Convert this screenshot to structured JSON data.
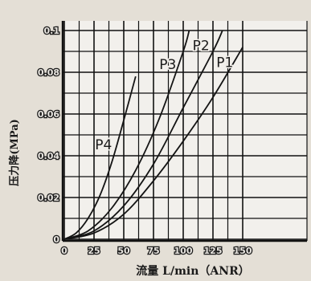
{
  "chart_data": {
    "type": "line",
    "xlabel": "流量 L/min（ANR）",
    "ylabel": "压力降(MPa)",
    "xlim": [
      0,
      160
    ],
    "ylim": [
      0,
      0.1
    ],
    "x_ticks": [
      0,
      25,
      50,
      75,
      100,
      125,
      150
    ],
    "y_ticks": [
      0,
      0.02,
      0.04,
      0.06,
      0.08,
      0.1
    ],
    "x_tick_labels": [
      "0",
      "25",
      "50",
      "75",
      "100",
      "125",
      "150"
    ],
    "y_tick_labels": [
      "0",
      "0.02",
      "0.04",
      "0.06",
      "0.08",
      "0.1"
    ],
    "grid": true,
    "series": [
      {
        "name": "P4",
        "x": [
          0,
          10,
          20,
          30,
          40,
          50,
          60
        ],
        "y": [
          0,
          0.003,
          0.01,
          0.021,
          0.037,
          0.057,
          0.078
        ]
      },
      {
        "name": "P3",
        "x": [
          0,
          20,
          40,
          60,
          80,
          100,
          105
        ],
        "y": [
          0,
          0.004,
          0.015,
          0.033,
          0.058,
          0.09,
          0.1
        ]
      },
      {
        "name": "P2",
        "x": [
          0,
          25,
          50,
          75,
          100,
          125,
          133
        ],
        "y": [
          0,
          0.004,
          0.016,
          0.036,
          0.063,
          0.09,
          0.1
        ]
      },
      {
        "name": "P1",
        "x": [
          0,
          25,
          50,
          75,
          100,
          125,
          150
        ],
        "y": [
          0,
          0.003,
          0.012,
          0.028,
          0.047,
          0.068,
          0.092
        ]
      }
    ]
  }
}
